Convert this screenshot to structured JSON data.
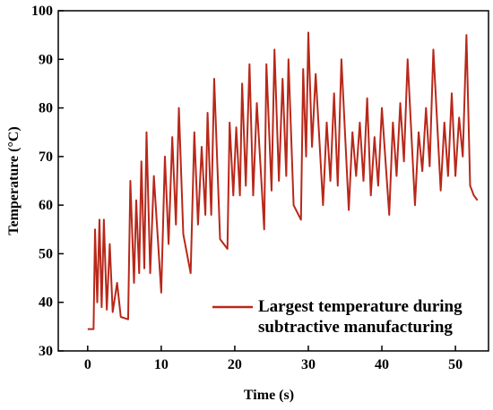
{
  "chart_data": {
    "type": "line",
    "xlabel": "Time (s)",
    "ylabel": "Temperature (°C)",
    "xlim": [
      -4,
      54.5
    ],
    "ylim": [
      30,
      100
    ],
    "xticks": [
      0,
      10,
      20,
      30,
      40,
      50
    ],
    "yticks": [
      30,
      40,
      50,
      60,
      70,
      80,
      90,
      100
    ],
    "legend": "lower right",
    "x": [
      0,
      0.8,
      1,
      1.3,
      1.6,
      1.9,
      2.2,
      2.6,
      3,
      3.4,
      4,
      4.5,
      5.5,
      5.8,
      6.3,
      6.6,
      7,
      7.3,
      7.7,
      8,
      8.5,
      9,
      10,
      10.5,
      11,
      11.5,
      12,
      12.4,
      13,
      14,
      14.5,
      15,
      15.5,
      16,
      16.3,
      16.8,
      17.2,
      18,
      19,
      19.3,
      19.8,
      20.2,
      20.7,
      21,
      21.5,
      22,
      22.5,
      23,
      24,
      24.3,
      25,
      25.4,
      26,
      26.5,
      27,
      27.3,
      28,
      29,
      29.3,
      29.7,
      30,
      30.5,
      31,
      32,
      32.5,
      33,
      33.5,
      34,
      34.5,
      35.5,
      36,
      36.5,
      37,
      37.5,
      38,
      38.5,
      39,
      39.5,
      40,
      41,
      41.5,
      42,
      42.5,
      43,
      43.5,
      44.5,
      45,
      45.5,
      46,
      46.5,
      47,
      48,
      48.5,
      49,
      49.5,
      50,
      50.5,
      51,
      51.5,
      52,
      52.5,
      53
    ],
    "series": [
      {
        "name": "Largest temperature during subtractive manufacturing",
        "color": "#b8281a",
        "values": [
          34.5,
          34.5,
          55,
          40,
          57,
          39,
          57,
          38.5,
          52,
          38,
          44,
          37,
          36.5,
          65,
          44,
          61,
          46,
          69,
          47,
          75,
          46,
          66,
          42,
          70,
          52,
          74,
          56,
          80,
          54,
          46,
          75,
          56,
          72,
          58,
          79,
          58,
          86,
          53,
          51,
          77,
          62,
          76,
          62,
          85,
          64,
          89,
          62,
          81,
          55,
          89,
          63,
          92,
          65,
          86,
          66,
          90,
          60,
          57,
          88,
          70,
          95.5,
          72,
          87,
          60,
          77,
          65,
          83,
          64,
          90,
          59,
          75,
          66,
          77,
          65,
          82,
          62,
          74,
          64,
          80,
          58,
          77,
          66,
          81,
          69,
          90,
          60,
          75,
          67,
          80,
          68,
          92,
          63,
          77,
          66,
          83,
          66,
          78,
          70,
          95,
          64,
          62,
          61
        ]
      }
    ]
  }
}
